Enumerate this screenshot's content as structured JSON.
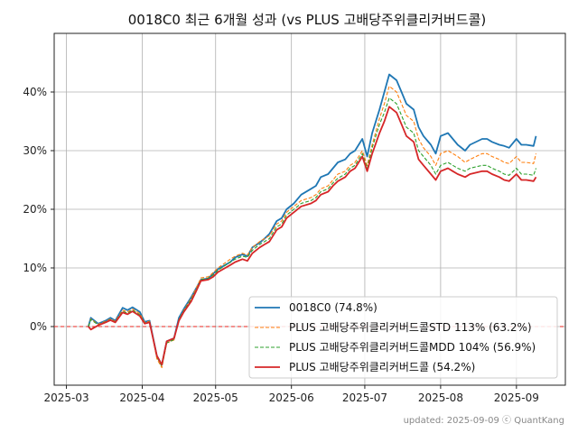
{
  "chart_data": {
    "type": "line",
    "title": "0018C0 최근 6개월 성과 (vs PLUS 고배당주위클리커버드콜)",
    "xlabel": "",
    "ylabel": "",
    "xlim": [
      "2025-02-24",
      "2025-09-21"
    ],
    "ylim": [
      -10,
      50
    ],
    "x_ticks": [
      "2025-03",
      "2025-04",
      "2025-05",
      "2025-06",
      "2025-07",
      "2025-08",
      "2025-09"
    ],
    "y_ticks": [
      {
        "value": 0,
        "label": "0%"
      },
      {
        "value": 10,
        "label": "10%"
      },
      {
        "value": 20,
        "label": "20%"
      },
      {
        "value": 30,
        "label": "30%"
      },
      {
        "value": 40,
        "label": "40%"
      }
    ],
    "grid": true,
    "legend_position": "lower-right",
    "reference_line": {
      "value": 0,
      "color": "#e8261f",
      "style": "dashed"
    },
    "footer": "updated: 2025-09-09 ⓒ QuantKang",
    "x": [
      "2025-03-10",
      "2025-03-11",
      "2025-03-14",
      "2025-03-17",
      "2025-03-19",
      "2025-03-21",
      "2025-03-24",
      "2025-03-26",
      "2025-03-28",
      "2025-03-31",
      "2025-04-02",
      "2025-04-04",
      "2025-04-07",
      "2025-04-09",
      "2025-04-11",
      "2025-04-14",
      "2025-04-16",
      "2025-04-18",
      "2025-04-21",
      "2025-04-23",
      "2025-04-25",
      "2025-04-28",
      "2025-04-30",
      "2025-05-02",
      "2025-05-07",
      "2025-05-09",
      "2025-05-12",
      "2025-05-14",
      "2025-05-16",
      "2025-05-19",
      "2025-05-21",
      "2025-05-23",
      "2025-05-26",
      "2025-05-28",
      "2025-05-30",
      "2025-06-02",
      "2025-06-05",
      "2025-06-09",
      "2025-06-11",
      "2025-06-13",
      "2025-06-16",
      "2025-06-18",
      "2025-06-20",
      "2025-06-23",
      "2025-06-25",
      "2025-06-27",
      "2025-06-30",
      "2025-07-02",
      "2025-07-04",
      "2025-07-07",
      "2025-07-09",
      "2025-07-11",
      "2025-07-14",
      "2025-07-16",
      "2025-07-18",
      "2025-07-21",
      "2025-07-23",
      "2025-07-25",
      "2025-07-28",
      "2025-07-30",
      "2025-08-01",
      "2025-08-04",
      "2025-08-06",
      "2025-08-08",
      "2025-08-11",
      "2025-08-13",
      "2025-08-18",
      "2025-08-20",
      "2025-08-22",
      "2025-08-25",
      "2025-08-27",
      "2025-08-29",
      "2025-09-01",
      "2025-09-03",
      "2025-09-05",
      "2025-09-08",
      "2025-09-09"
    ],
    "series": [
      {
        "name": "0018C0 (74.8%)",
        "color": "#1f77b4",
        "style": "solid",
        "values": [
          0,
          1.5,
          0.5,
          1.0,
          1.5,
          1.0,
          3.2,
          2.8,
          3.3,
          2.5,
          0.8,
          1.0,
          -5.0,
          -6.5,
          -2.5,
          -2.0,
          1.5,
          3.0,
          5.0,
          6.5,
          8.0,
          8.2,
          9.0,
          9.8,
          11.0,
          11.8,
          12.3,
          12.0,
          13.5,
          14.3,
          15.0,
          15.8,
          18.0,
          18.5,
          20.0,
          21.0,
          22.5,
          23.5,
          24.0,
          25.5,
          26.0,
          27.0,
          28.0,
          28.5,
          29.5,
          30.0,
          32.0,
          29.0,
          33.0,
          37.0,
          40.0,
          43.0,
          42.0,
          40.0,
          38.0,
          37.0,
          34.0,
          32.5,
          31.0,
          29.5,
          32.5,
          33.0,
          32.0,
          31.0,
          30.0,
          31.0,
          32.0,
          32.0,
          31.5,
          31.0,
          30.8,
          30.5,
          32.0,
          31.0,
          31.0,
          30.8,
          32.5
        ]
      },
      {
        "name": "PLUS 고배당주위클리커버드콜STD 113% (63.2%)",
        "color": "#ff7f0e",
        "style": "dashed",
        "values": [
          0,
          1.3,
          0.4,
          0.9,
          1.3,
          0.9,
          2.8,
          2.5,
          3.0,
          2.2,
          0.7,
          0.9,
          -5.5,
          -7.0,
          -2.8,
          -2.3,
          1.2,
          2.8,
          4.8,
          6.5,
          8.3,
          8.5,
          9.2,
          10.0,
          11.5,
          12.0,
          12.5,
          12.2,
          13.5,
          14.5,
          15.0,
          15.5,
          17.5,
          18.0,
          19.5,
          20.5,
          21.5,
          22.0,
          22.5,
          23.5,
          24.0,
          25.0,
          26.0,
          26.5,
          27.5,
          28.0,
          30.0,
          27.5,
          31.0,
          35.5,
          38.0,
          41.0,
          40.0,
          38.0,
          36.0,
          35.0,
          32.0,
          30.5,
          29.0,
          27.5,
          29.5,
          30.0,
          29.5,
          29.0,
          28.0,
          28.5,
          29.5,
          29.5,
          29.0,
          28.5,
          28.0,
          27.8,
          29.0,
          28.0,
          28.0,
          27.8,
          29.5
        ]
      },
      {
        "name": "PLUS 고배당주위클리커버드콜MDD 104% (56.9%)",
        "color": "#2ca02c",
        "style": "dashed",
        "values": [
          0,
          1.2,
          0.3,
          0.8,
          1.2,
          0.8,
          2.6,
          2.3,
          2.8,
          2.0,
          0.6,
          0.8,
          -5.2,
          -6.8,
          -2.8,
          -2.2,
          1.2,
          2.7,
          4.6,
          6.2,
          8.0,
          8.2,
          8.8,
          9.6,
          11.0,
          11.5,
          12.0,
          11.8,
          13.0,
          14.0,
          14.5,
          15.0,
          17.0,
          17.5,
          19.0,
          20.0,
          21.0,
          21.5,
          22.0,
          23.0,
          23.5,
          24.5,
          25.3,
          26.0,
          27.0,
          27.5,
          29.5,
          27.0,
          30.5,
          34.5,
          36.5,
          39.0,
          38.0,
          36.0,
          34.0,
          33.0,
          30.0,
          29.0,
          27.5,
          26.0,
          27.5,
          28.0,
          27.5,
          27.0,
          26.5,
          27.0,
          27.5,
          27.5,
          27.0,
          26.5,
          26.0,
          25.8,
          27.0,
          26.0,
          26.0,
          25.8,
          27.0
        ]
      },
      {
        "name": "PLUS 고배당주위클리커버드콜 (54.2%)",
        "color": "#d62728",
        "style": "solid",
        "values": [
          0,
          -0.5,
          0.2,
          0.7,
          1.1,
          0.7,
          2.4,
          2.1,
          2.6,
          1.8,
          0.5,
          0.7,
          -5.0,
          -6.5,
          -2.5,
          -2.0,
          1.0,
          2.5,
          4.3,
          6.0,
          7.8,
          8.0,
          8.5,
          9.3,
          10.5,
          11.0,
          11.5,
          11.2,
          12.5,
          13.5,
          14.0,
          14.5,
          16.5,
          17.0,
          18.5,
          19.5,
          20.5,
          21.0,
          21.5,
          22.5,
          23.0,
          24.0,
          24.8,
          25.5,
          26.5,
          27.0,
          29.0,
          26.5,
          29.5,
          33.0,
          35.0,
          37.5,
          36.5,
          34.5,
          32.5,
          31.5,
          28.5,
          27.5,
          26.0,
          25.0,
          26.5,
          27.0,
          26.5,
          26.0,
          25.5,
          26.0,
          26.5,
          26.5,
          26.0,
          25.5,
          25.0,
          24.8,
          26.0,
          25.0,
          25.0,
          24.8,
          25.5
        ]
      }
    ]
  }
}
